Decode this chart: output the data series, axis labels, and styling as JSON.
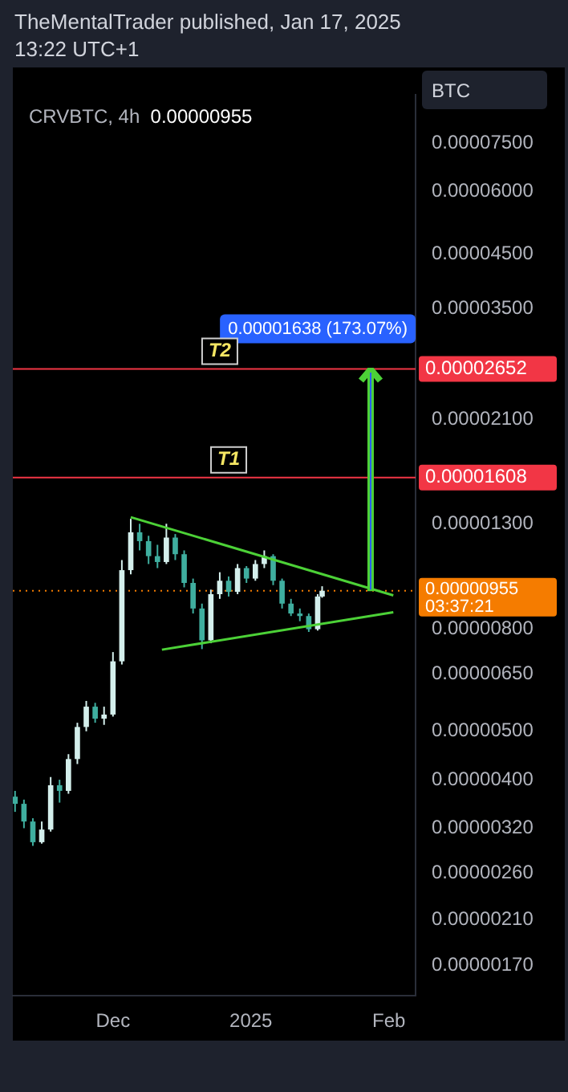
{
  "chart_data": {
    "type": "candlestick",
    "title": "CRVBTC, 4h",
    "subtitle": "0.00000955",
    "ylabel": "BTC",
    "log": "y",
    "grid": false,
    "legend": false,
    "xlim": [
      "2024-11-08T12:00",
      "2025-02-07"
    ],
    "xticks": [
      {
        "value": "2024-12-01",
        "label": "Dec"
      },
      {
        "value": "2025-01-01",
        "label": "2025"
      },
      {
        "value": "2025-02-01",
        "label": "Feb"
      }
    ],
    "ylim": [
      1.48e-06,
      9.36e-05
    ],
    "yticks": [
      {
        "value": 7.5e-05,
        "label": "0.00007500"
      },
      {
        "value": 6e-05,
        "label": "0.00006000"
      },
      {
        "value": 4.5e-05,
        "label": "0.00004500"
      },
      {
        "value": 3.5e-05,
        "label": "0.00003500"
      },
      {
        "value": 2.1e-05,
        "label": "0.00002100"
      },
      {
        "value": 1.3e-05,
        "label": "0.00001300"
      },
      {
        "value": 8e-06,
        "label": "0.00000800"
      },
      {
        "value": 6.5e-06,
        "label": "0.00000650"
      },
      {
        "value": 5e-06,
        "label": "0.00000500"
      },
      {
        "value": 4e-06,
        "label": "0.00000400"
      },
      {
        "value": 3.2e-06,
        "label": "0.00000320"
      },
      {
        "value": 2.6e-06,
        "label": "0.00000260"
      },
      {
        "value": 2.1e-06,
        "label": "0.00000210"
      },
      {
        "value": 1.7e-06,
        "label": "0.00000170"
      }
    ],
    "series": [
      {
        "colors": [
          "#3fae9f",
          "#3fae9f",
          "#3fae9f",
          "#d4efec",
          "#d4efec",
          "#3fae9f",
          "#d4efec",
          "#d4efec",
          "#d4efec",
          "#3fae9f",
          "#d4efec",
          "#d4efec",
          "#d4efec",
          "#d4efec",
          "#3fae9f",
          "#3fae9f",
          "#3fae9f",
          "#d4efec",
          "#3fae9f",
          "#3fae9f",
          "#3fae9f",
          "#3fae9f",
          "#d4efec",
          "#d4efec",
          "#3fae9f",
          "#d4efec",
          "#3fae9f",
          "#d4efec",
          "#d4efec",
          "#3fae9f",
          "#3fae9f",
          "#3fae9f",
          "#3fae9f",
          "#3fae9f",
          "#d4efec",
          "#d4efec"
        ],
        "x": [
          "2024-11-09",
          "2024-11-11",
          "2024-11-13",
          "2024-11-15",
          "2024-11-17",
          "2024-11-19",
          "2024-11-21",
          "2024-11-23",
          "2024-11-25",
          "2024-11-27",
          "2024-11-29",
          "2024-12-01",
          "2024-12-03",
          "2024-12-05",
          "2024-12-07",
          "2024-12-09",
          "2024-12-11",
          "2024-12-13",
          "2024-12-15",
          "2024-12-17",
          "2024-12-19",
          "2024-12-21",
          "2024-12-23",
          "2024-12-25",
          "2024-12-27",
          "2024-12-29",
          "2024-12-31",
          "2025-01-02",
          "2025-01-04",
          "2025-01-06",
          "2025-01-08",
          "2025-01-10",
          "2025-01-12",
          "2025-01-14",
          "2025-01-16",
          "2025-01-17"
        ],
        "ohlc": [
          [
            3.7e-06,
            3.8e-06,
            3.45e-06,
            3.58e-06
          ],
          [
            3.58e-06,
            3.65e-06,
            3.2e-06,
            3.3e-06
          ],
          [
            3.3e-06,
            3.35e-06,
            2.95e-06,
            3e-06
          ],
          [
            3e-06,
            3.3e-06,
            2.98e-06,
            3.18e-06
          ],
          [
            3.18e-06,
            4.05e-06,
            3.15e-06,
            3.9e-06
          ],
          [
            3.9e-06,
            4e-06,
            3.6e-06,
            3.8e-06
          ],
          [
            3.8e-06,
            4.5e-06,
            3.75e-06,
            4.4e-06
          ],
          [
            4.4e-06,
            5.2e-06,
            4.3e-06,
            5.1e-06
          ],
          [
            5.1e-06,
            5.75e-06,
            5e-06,
            5.6e-06
          ],
          [
            5.6e-06,
            5.7e-06,
            5.2e-06,
            5.3e-06
          ],
          [
            5.3e-06,
            5.6e-06,
            5.15e-06,
            5.4e-06
          ],
          [
            5.4e-06,
            7.2e-06,
            5.35e-06,
            6.9e-06
          ],
          [
            6.9e-06,
            1.1e-05,
            6.8e-06,
            1.05e-05
          ],
          [
            1.05e-05,
            1.33e-05,
            1.03e-05,
            1.25e-05
          ],
          [
            1.25e-05,
            1.3e-05,
            1.15e-05,
            1.2e-05
          ],
          [
            1.2e-05,
            1.23e-05,
            1.08e-05,
            1.12e-05
          ],
          [
            1.12e-05,
            1.18e-05,
            1.06e-05,
            1.09e-05
          ],
          [
            1.09e-05,
            1.3e-05,
            1.08e-05,
            1.22e-05
          ],
          [
            1.22e-05,
            1.24e-05,
            1.1e-05,
            1.13e-05
          ],
          [
            1.13e-05,
            1.15e-05,
            9.7e-06,
            9.9e-06
          ],
          [
            9.9e-06,
            1.01e-05,
            8.6e-06,
            8.8e-06
          ],
          [
            8.8e-06,
            9e-06,
            7.3e-06,
            7.6e-06
          ],
          [
            7.6e-06,
            9.6e-06,
            7.5e-06,
            9.4e-06
          ],
          [
            9.4e-06,
            1.04e-05,
            9.2e-06,
            1e-05
          ],
          [
            1e-05,
            1.02e-05,
            9.3e-06,
            9.5e-06
          ],
          [
            9.5e-06,
            1.08e-05,
            9.4e-06,
            1.06e-05
          ],
          [
            1.06e-05,
            1.07e-05,
            9.9e-06,
            1.01e-05
          ],
          [
            1.01e-05,
            1.1e-05,
            1e-05,
            1.08e-05
          ],
          [
            1.08e-05,
            1.15e-05,
            1.06e-05,
            1.12e-05
          ],
          [
            1.12e-05,
            1.13e-05,
            9.8e-06,
            1e-05
          ],
          [
            1e-05,
            1.01e-05,
            8.8e-06,
            9e-06
          ],
          [
            9e-06,
            9.2e-06,
            8.5e-06,
            8.6e-06
          ],
          [
            8.6e-06,
            8.8e-06,
            8.3e-06,
            8.5e-06
          ],
          [
            8.5e-06,
            8.6e-06,
            7.9e-06,
            8e-06
          ],
          [
            8e-06,
            9.4e-06,
            7.95e-06,
            9.3e-06
          ],
          [
            9.3e-06,
            9.75e-06,
            9.25e-06,
            9.55e-06
          ]
        ]
      },
      {
        "type": "line",
        "color": "#4cd137",
        "x": [
          "2024-12-05",
          "2025-02-02"
        ],
        "values": [
          1.34e-05,
          9.35e-06
        ]
      },
      {
        "type": "line",
        "color": "#4cd137",
        "x": [
          "2024-12-12",
          "2025-02-02"
        ],
        "values": [
          7.28e-06,
          8.65e-06
        ]
      }
    ],
    "ref_lines": [
      {
        "axis": "y",
        "value": 2.652e-05,
        "label": "0.00002652",
        "color": "#f23645"
      },
      {
        "axis": "y",
        "value": 1.608e-05,
        "label": "0.00001608",
        "color": "#f23645"
      },
      {
        "axis": "y",
        "value": 9.55e-06,
        "label": "0.00000955",
        "color": "#f57c00",
        "line_style": "dotted"
      }
    ],
    "annotations": [
      "TheMentalTrader published, Jan 17, 2025 13:22 UTC+1",
      "03:37:21",
      {
        "text": "0.00001638 (173.07%)",
        "x": "2025-01-28",
        "y": 2.652e-05
      },
      {
        "text": "T2",
        "x": "2024-12-25",
        "y": 2.652e-05
      },
      {
        "text": "T1",
        "x": "2024-12-27",
        "y": 1.608e-05
      }
    ]
  }
}
